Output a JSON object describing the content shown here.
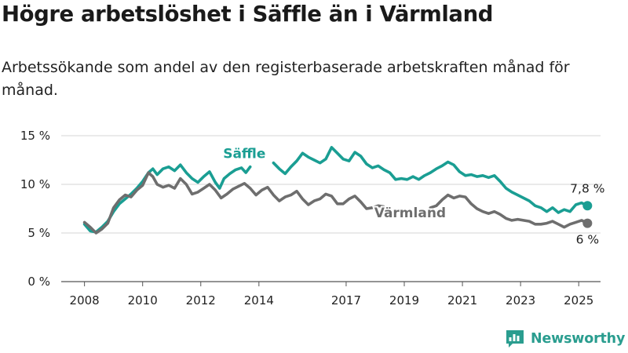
{
  "header": {
    "title": "Högre arbetslöshet i Säffle än i Värmland",
    "subtitle": "Arbetssökande som andel av den registerbaserade arbetskraften månad för månad."
  },
  "brand": {
    "name": "Newsworthy"
  },
  "colors": {
    "saffle": "#1a9e93",
    "varmland": "#6e6e6e",
    "grid": "#d6d6d6",
    "text": "#222222",
    "brand": "#2a9d8f"
  },
  "chart_data": {
    "type": "line",
    "x_tick_labels": [
      "2008",
      "2010",
      "2012",
      "2014",
      "2017",
      "2019",
      "2021",
      "2023",
      "2025"
    ],
    "x_tick_values": [
      2008,
      2010,
      2012,
      2014,
      2017,
      2019,
      2021,
      2023,
      2025
    ],
    "y_tick_labels": [
      "0 %",
      "5 %",
      "10 %",
      "15 %"
    ],
    "y_tick_values": [
      0,
      5,
      10,
      15
    ],
    "xlim": [
      2007.2,
      2025.75
    ],
    "ylim": [
      0,
      15
    ],
    "grid": "horizontal",
    "series": [
      {
        "name": "Säffle",
        "color": "#1a9e93",
        "end_label": "7,8 %",
        "points": [
          [
            2008.0,
            5.9
          ],
          [
            2008.2,
            5.2
          ],
          [
            2008.4,
            5.1
          ],
          [
            2008.6,
            5.6
          ],
          [
            2008.8,
            6.2
          ],
          [
            2009.0,
            7.2
          ],
          [
            2009.2,
            8.0
          ],
          [
            2009.4,
            8.5
          ],
          [
            2009.6,
            9.0
          ],
          [
            2009.8,
            9.6
          ],
          [
            2010.0,
            10.3
          ],
          [
            2010.2,
            11.2
          ],
          [
            2010.35,
            11.6
          ],
          [
            2010.5,
            11.0
          ],
          [
            2010.7,
            11.6
          ],
          [
            2010.9,
            11.8
          ],
          [
            2011.1,
            11.4
          ],
          [
            2011.3,
            12.0
          ],
          [
            2011.5,
            11.2
          ],
          [
            2011.7,
            10.6
          ],
          [
            2011.9,
            10.2
          ],
          [
            2012.1,
            10.8
          ],
          [
            2012.3,
            11.3
          ],
          [
            2012.5,
            10.2
          ],
          [
            2012.65,
            9.6
          ],
          [
            2012.8,
            10.6
          ],
          [
            2013.0,
            11.1
          ],
          [
            2013.2,
            11.5
          ],
          [
            2013.4,
            11.7
          ],
          [
            2013.55,
            11.2
          ],
          [
            2013.7,
            11.8
          ],
          null,
          [
            2014.5,
            12.2
          ],
          [
            2014.7,
            11.6
          ],
          [
            2014.9,
            11.1
          ],
          [
            2015.1,
            11.8
          ],
          [
            2015.3,
            12.4
          ],
          [
            2015.5,
            13.2
          ],
          [
            2015.7,
            12.8
          ],
          [
            2015.9,
            12.5
          ],
          [
            2016.1,
            12.2
          ],
          [
            2016.3,
            12.6
          ],
          [
            2016.5,
            13.8
          ],
          [
            2016.7,
            13.2
          ],
          [
            2016.9,
            12.6
          ],
          [
            2017.1,
            12.4
          ],
          [
            2017.3,
            13.3
          ],
          [
            2017.5,
            12.9
          ],
          [
            2017.7,
            12.1
          ],
          [
            2017.9,
            11.7
          ],
          [
            2018.1,
            11.9
          ],
          [
            2018.3,
            11.5
          ],
          [
            2018.5,
            11.2
          ],
          [
            2018.7,
            10.5
          ],
          [
            2018.9,
            10.6
          ],
          [
            2019.1,
            10.5
          ],
          [
            2019.3,
            10.8
          ],
          [
            2019.5,
            10.5
          ],
          [
            2019.7,
            10.9
          ],
          [
            2019.9,
            11.2
          ],
          [
            2020.1,
            11.6
          ],
          [
            2020.3,
            11.9
          ],
          [
            2020.5,
            12.3
          ],
          [
            2020.7,
            12.0
          ],
          [
            2020.9,
            11.3
          ],
          [
            2021.1,
            10.9
          ],
          [
            2021.3,
            11.0
          ],
          [
            2021.5,
            10.8
          ],
          [
            2021.7,
            10.9
          ],
          [
            2021.9,
            10.7
          ],
          [
            2022.1,
            10.9
          ],
          [
            2022.3,
            10.3
          ],
          [
            2022.5,
            9.6
          ],
          [
            2022.7,
            9.2
          ],
          [
            2022.9,
            8.9
          ],
          [
            2023.1,
            8.6
          ],
          [
            2023.3,
            8.3
          ],
          [
            2023.5,
            7.8
          ],
          [
            2023.7,
            7.6
          ],
          [
            2023.9,
            7.2
          ],
          [
            2024.1,
            7.6
          ],
          [
            2024.3,
            7.1
          ],
          [
            2024.5,
            7.4
          ],
          [
            2024.7,
            7.2
          ],
          [
            2024.9,
            7.9
          ],
          [
            2025.1,
            8.1
          ],
          [
            2025.3,
            7.8
          ]
        ]
      },
      {
        "name": "Värmland",
        "color": "#6e6e6e",
        "end_label": "6 %",
        "points": [
          [
            2008.0,
            6.1
          ],
          [
            2008.2,
            5.6
          ],
          [
            2008.4,
            5.0
          ],
          [
            2008.6,
            5.4
          ],
          [
            2008.8,
            6.0
          ],
          [
            2009.0,
            7.6
          ],
          [
            2009.2,
            8.4
          ],
          [
            2009.4,
            8.9
          ],
          [
            2009.6,
            8.7
          ],
          [
            2009.8,
            9.4
          ],
          [
            2010.0,
            9.9
          ],
          [
            2010.2,
            11.2
          ],
          [
            2010.35,
            10.8
          ],
          [
            2010.5,
            10.0
          ],
          [
            2010.7,
            9.7
          ],
          [
            2010.9,
            9.9
          ],
          [
            2011.1,
            9.6
          ],
          [
            2011.3,
            10.6
          ],
          [
            2011.5,
            10.0
          ],
          [
            2011.7,
            9.0
          ],
          [
            2011.9,
            9.2
          ],
          [
            2012.1,
            9.6
          ],
          [
            2012.3,
            10.0
          ],
          [
            2012.5,
            9.4
          ],
          [
            2012.7,
            8.6
          ],
          [
            2012.9,
            9.0
          ],
          [
            2013.1,
            9.5
          ],
          [
            2013.3,
            9.8
          ],
          [
            2013.5,
            10.1
          ],
          [
            2013.7,
            9.6
          ],
          [
            2013.9,
            8.9
          ],
          [
            2014.1,
            9.4
          ],
          [
            2014.3,
            9.7
          ],
          [
            2014.5,
            8.9
          ],
          [
            2014.7,
            8.3
          ],
          [
            2014.9,
            8.7
          ],
          [
            2015.1,
            8.9
          ],
          [
            2015.3,
            9.3
          ],
          [
            2015.5,
            8.5
          ],
          [
            2015.7,
            7.9
          ],
          [
            2015.9,
            8.3
          ],
          [
            2016.1,
            8.5
          ],
          [
            2016.3,
            9.0
          ],
          [
            2016.5,
            8.8
          ],
          [
            2016.7,
            8.0
          ],
          [
            2016.9,
            8.0
          ],
          [
            2017.1,
            8.5
          ],
          [
            2017.3,
            8.8
          ],
          [
            2017.5,
            8.2
          ],
          [
            2017.7,
            7.5
          ],
          [
            2017.9,
            7.6
          ],
          [
            2018.1,
            7.8
          ],
          [
            2018.3,
            7.7
          ],
          null,
          [
            2019.9,
            7.6
          ],
          [
            2020.1,
            7.8
          ],
          [
            2020.3,
            8.4
          ],
          [
            2020.5,
            8.9
          ],
          [
            2020.7,
            8.6
          ],
          [
            2020.9,
            8.8
          ],
          [
            2021.1,
            8.7
          ],
          [
            2021.3,
            8.0
          ],
          [
            2021.5,
            7.5
          ],
          [
            2021.7,
            7.2
          ],
          [
            2021.9,
            7.0
          ],
          [
            2022.1,
            7.2
          ],
          [
            2022.3,
            6.9
          ],
          [
            2022.5,
            6.5
          ],
          [
            2022.7,
            6.3
          ],
          [
            2022.9,
            6.4
          ],
          [
            2023.1,
            6.3
          ],
          [
            2023.3,
            6.2
          ],
          [
            2023.5,
            5.9
          ],
          [
            2023.7,
            5.9
          ],
          [
            2023.9,
            6.0
          ],
          [
            2024.1,
            6.2
          ],
          [
            2024.3,
            5.9
          ],
          [
            2024.5,
            5.6
          ],
          [
            2024.7,
            5.9
          ],
          [
            2024.9,
            6.1
          ],
          [
            2025.1,
            6.3
          ],
          [
            2025.3,
            6.0
          ]
        ]
      }
    ],
    "annotations": [
      {
        "text": "Säffle",
        "series": "Säffle",
        "x": 2013.5,
        "y": 12.7
      },
      {
        "text": "Värmland",
        "series": "Värmland",
        "x": 2019.2,
        "y": 6.6
      }
    ]
  }
}
